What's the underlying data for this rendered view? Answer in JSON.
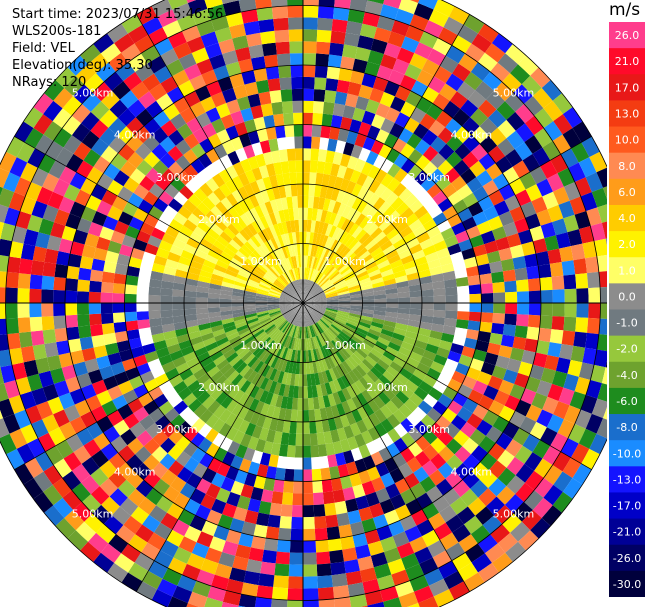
{
  "info": {
    "start_time": "Start time: 2023/07/31 15:46:56",
    "instrument": "WLS200s-181",
    "field": "Field: VEL",
    "elevation": "Elevation(deg): 35.30",
    "nrays": "NRays: 120"
  },
  "colorbar": {
    "unit": "m/s",
    "levels": [
      {
        "label": "26.0",
        "color": "#ff3d8c"
      },
      {
        "label": "21.0",
        "color": "#ff0a2a"
      },
      {
        "label": "17.0",
        "color": "#e81818"
      },
      {
        "label": "13.0",
        "color": "#f43c12"
      },
      {
        "label": "10.0",
        "color": "#ff5a1e"
      },
      {
        "label": "8.0",
        "color": "#ff8a52"
      },
      {
        "label": "6.0",
        "color": "#ff9c1a"
      },
      {
        "label": "4.0",
        "color": "#ffcc00"
      },
      {
        "label": "2.0",
        "color": "#fff200"
      },
      {
        "label": "1.0",
        "color": "#ffff66"
      },
      {
        "label": "0.0",
        "color": "#8c8c8c"
      },
      {
        "label": "-1.0",
        "color": "#707a80"
      },
      {
        "label": "-2.0",
        "color": "#96c83c"
      },
      {
        "label": "-4.0",
        "color": "#6ea22e"
      },
      {
        "label": "-6.0",
        "color": "#1e8c1e"
      },
      {
        "label": "-8.0",
        "color": "#1a6ecc"
      },
      {
        "label": "-10.0",
        "color": "#1a8cff"
      },
      {
        "label": "-13.0",
        "color": "#1414ff"
      },
      {
        "label": "-17.0",
        "color": "#0000c8"
      },
      {
        "label": "-21.0",
        "color": "#000096"
      },
      {
        "label": "-26.0",
        "color": "#000064"
      },
      {
        "label": "-30.0",
        "color": "#00003c"
      }
    ]
  },
  "chart_data": {
    "type": "heatmap",
    "field": "VEL",
    "units": "m/s",
    "n_rays": 120,
    "elevation_deg": 35.3,
    "range_ring_labels": [
      "1.00km",
      "2.00km",
      "3.00km",
      "4.00km",
      "5.00km"
    ],
    "range_rings_km": [
      1,
      2,
      3,
      4,
      5
    ],
    "max_range_km": 5.6,
    "bin_km": 0.2,
    "description_of_field": "valid returns within ~2.6 km: yellow (+1 to +4 m/s) to the north, grey (~0 m/s) near centre, green (-2 to -6 m/s) to the south; beyond that range the bins are noise",
    "spokes_deg": [
      0,
      30,
      60,
      90,
      120,
      150,
      180,
      210,
      240,
      270,
      300,
      330
    ]
  }
}
